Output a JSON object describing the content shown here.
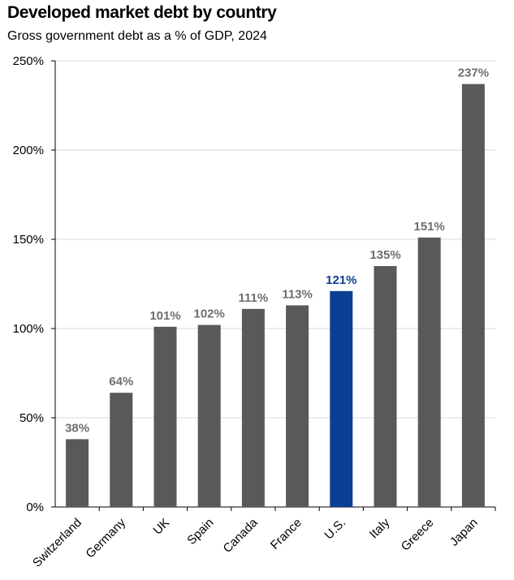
{
  "chart_data": {
    "type": "bar",
    "title": "Developed market debt by country",
    "subtitle": "Gross government debt as a % of GDP, 2024",
    "categories": [
      "Switzerland",
      "Germany",
      "UK",
      "Spain",
      "Canada",
      "France",
      "U.S.",
      "Italy",
      "Greece",
      "Japan"
    ],
    "values": [
      38,
      64,
      101,
      102,
      111,
      113,
      121,
      135,
      151,
      237
    ],
    "data_labels": [
      "38%",
      "64%",
      "101%",
      "102%",
      "111%",
      "113%",
      "121%",
      "135%",
      "151%",
      "237%"
    ],
    "ylim": [
      0,
      250
    ],
    "yticks": [
      0,
      50,
      100,
      150,
      200,
      250
    ],
    "ytick_labels": [
      "0%",
      "50%",
      "100%",
      "150%",
      "200%",
      "250%"
    ],
    "grid": true,
    "legend": "none",
    "highlight_category": "U.S.",
    "colors": {
      "bar": "#58595b",
      "highlight": "#0a3f94",
      "label": "#6e6e6e",
      "grid": "#d9d9d9",
      "axis": "#000000"
    }
  }
}
